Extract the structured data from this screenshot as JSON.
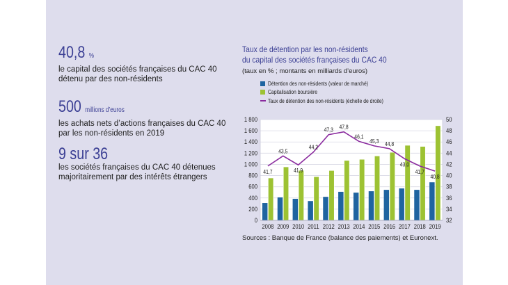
{
  "stats": [
    {
      "value": "40,8",
      "unit": "%",
      "desc_lines": [
        "le capital des sociétés françaises du CAC 40",
        "détenu par des non-résidents"
      ]
    },
    {
      "value": "500",
      "unit": "millions d’euros",
      "desc_lines": [
        "les achats nets d’actions françaises du CAC 40",
        "par les non-résidents en 2019"
      ]
    },
    {
      "value": "9 sur 36",
      "unit": "",
      "desc_lines": [
        "les sociétés françaises du CAC 40 détenues",
        "majoritairement par des intérêts étrangers"
      ]
    }
  ],
  "colors": {
    "panel": "#dedded",
    "accent": "#3b3f94",
    "blue": "#1f64a0",
    "green": "#9dc233",
    "line": "#8a2a9e"
  },
  "chart_data": {
    "type": "bar",
    "title": "Taux de détention par les non-résidents du capital des sociétés françaises du CAC 40",
    "title_lines": [
      "Taux de détention par les non-résidents",
      "du capital des sociétés françaises du CAC 40"
    ],
    "subtitle": "(taux en % ; montants en milliards d’euros)",
    "categories": [
      "2008",
      "2009",
      "2010",
      "2011",
      "2012",
      "2013",
      "2014",
      "2015",
      "2016",
      "2017",
      "2018",
      "2019"
    ],
    "series": [
      {
        "name": "Détention des non-résidents (valeur de marché)",
        "kind": "bar",
        "axis": "left",
        "color": "#1f64a0",
        "values": [
          310,
          410,
          385,
          345,
          420,
          510,
          495,
          520,
          545,
          570,
          545,
          680
        ]
      },
      {
        "name": "Capitalisation boursière",
        "kind": "bar",
        "axis": "left",
        "color": "#9dc233",
        "values": [
          757,
          955,
          893,
          780,
          890,
          1070,
          1090,
          1150,
          1215,
          1340,
          1320,
          1690
        ]
      },
      {
        "name": "Taux de détention des non-résidents (échelle de droite)",
        "kind": "line",
        "axis": "right",
        "color": "#8a2a9e",
        "values": [
          41.7,
          43.5,
          41.9,
          44.2,
          47.3,
          47.8,
          46.1,
          45.3,
          44.8,
          43.0,
          41.7,
          40.8
        ],
        "labels": [
          "41,7",
          "43,5",
          "41,9",
          "44,2",
          "47,3",
          "47,8",
          "46,1",
          "45,3",
          "44,8",
          "43,0",
          "41,7",
          "40,8"
        ]
      }
    ],
    "y_left": {
      "min": 0,
      "max": 1800,
      "ticks": [
        0,
        200,
        400,
        600,
        800,
        1000,
        1200,
        1400,
        1600,
        1800
      ],
      "tick_labels": [
        "0",
        "200",
        "400",
        "600",
        "800",
        "1 000",
        "1 200",
        "1 400",
        "1 600",
        "1 800"
      ]
    },
    "y_right": {
      "min": 32,
      "max": 50,
      "ticks": [
        32,
        34,
        36,
        38,
        40,
        42,
        44,
        46,
        48,
        50
      ],
      "tick_labels": [
        "32",
        "34",
        "36",
        "38",
        "40",
        "42",
        "44",
        "46",
        "48",
        "50"
      ]
    },
    "grid": true,
    "legend_position": "top-left",
    "source": "Sources : Banque de France (balance des paiements) et Euronext."
  }
}
